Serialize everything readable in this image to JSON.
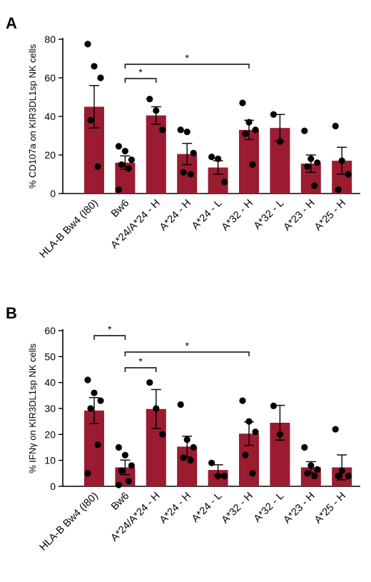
{
  "colors": {
    "bar": "#9b1b30",
    "point": "#000000",
    "axis": "#000000"
  },
  "chart_data": [
    {
      "panel": "A",
      "type": "bar",
      "ylabel": "% CD107a on KIR3DL1sp NK cells",
      "ylim": [
        0,
        80
      ],
      "yticks": [
        0,
        20,
        40,
        60,
        80
      ],
      "categories": [
        "HLA-B Bw4 (I80)",
        "Bw6",
        "A*24/A*24 - H",
        "A*24 - H",
        "A*24 - L",
        "A*32 - H",
        "A*32 - L",
        "A*23 - H",
        "A*25 - H"
      ],
      "values": [
        45,
        16,
        40.5,
        20.5,
        13.5,
        33,
        34,
        15.5,
        17
      ],
      "errors": [
        11,
        3.5,
        4.5,
        5.5,
        3.5,
        5,
        7,
        4.5,
        7
      ],
      "points": [
        [
          77.5,
          66,
          60,
          38,
          14
        ],
        [
          24.5,
          22,
          17.5,
          15,
          13,
          2
        ],
        [
          49,
          43,
          33
        ],
        [
          33,
          32,
          21,
          11,
          10
        ],
        [
          19,
          18,
          6
        ],
        [
          47,
          37,
          33,
          31,
          15
        ],
        [
          41,
          27
        ],
        [
          32.5,
          18,
          16,
          14,
          4
        ],
        [
          35,
          17,
          10,
          2
        ]
      ],
      "significance": [
        {
          "from": "Bw6",
          "to": "A*24/A*24 - H",
          "label": "*"
        },
        {
          "from": "Bw6",
          "to": "A*32 - H",
          "label": "*"
        }
      ]
    },
    {
      "panel": "B",
      "type": "bar",
      "ylabel": "% IFNγ on KIR3DL1sp NK cells",
      "ylim": [
        0,
        60
      ],
      "yticks": [
        0,
        10,
        20,
        30,
        40,
        50,
        60
      ],
      "categories": [
        "HLA-B Bw4 (I80)",
        "Bw6",
        "A*24/A*24 - H",
        "A*24 - H",
        "A*24 - L",
        "A*32 - H",
        "A*32 - L",
        "A*23 - H",
        "A*25 - H"
      ],
      "values": [
        29.2,
        7.3,
        29.8,
        15.3,
        6.3,
        20.3,
        24.5,
        7.3,
        7.3
      ],
      "errors": [
        5,
        2.8,
        7.5,
        4,
        2,
        4.5,
        6.7,
        2.2,
        4.8
      ],
      "points": [
        [
          41,
          36,
          33,
          30,
          16,
          5
        ],
        [
          15,
          12,
          8,
          6,
          2,
          0.5
        ],
        [
          40,
          30,
          20
        ],
        [
          31.5,
          18,
          15,
          11,
          10
        ],
        [
          9,
          4,
          4
        ],
        [
          33,
          25,
          21,
          12,
          5
        ],
        [
          31,
          20
        ],
        [
          15,
          8,
          6.5,
          5,
          4
        ],
        [
          22,
          6,
          4,
          4
        ]
      ],
      "significance": [
        {
          "from": "HLA-B Bw4 (I80)",
          "to": "Bw6",
          "label": "*"
        },
        {
          "from": "Bw6",
          "to": "A*24/A*24 - H",
          "label": "*"
        },
        {
          "from": "Bw6",
          "to": "A*32 - H",
          "label": "*"
        }
      ]
    }
  ]
}
